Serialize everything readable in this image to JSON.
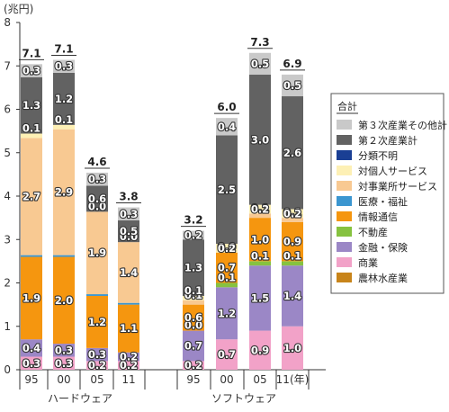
{
  "chart_data": {
    "type": "bar",
    "stacked": true,
    "y_unit_label": "(兆円)",
    "ylim": [
      0,
      8
    ],
    "yticks": [
      "0",
      "1",
      "2",
      "3",
      "4",
      "5",
      "6",
      "7",
      "8"
    ],
    "groups": [
      {
        "label": "ハードウェア",
        "categories": [
          "95",
          "00",
          "05",
          "11"
        ]
      },
      {
        "label": "ソフトウェア",
        "categories": [
          "95",
          "00",
          "05",
          "11(年)"
        ]
      }
    ],
    "totals": [
      "7.1",
      "7.1",
      "4.6",
      "3.8",
      "3.2",
      "6.0",
      "7.3",
      "6.9"
    ],
    "legend_title": "合計",
    "series": [
      {
        "name": "農林水産業",
        "color": "#c8841a",
        "values": [
          0,
          0,
          0,
          0,
          0,
          0,
          0,
          0
        ],
        "labels": [
          "",
          "",
          "",
          "",
          "",
          "",
          "",
          ""
        ]
      },
      {
        "name": "商業",
        "color": "#f2a2c8",
        "values": [
          0.3,
          0.3,
          0.2,
          0.2,
          0.2,
          0.7,
          0.9,
          1.0
        ],
        "labels": [
          "0.3",
          "0.3",
          "0.2",
          "0.2",
          "0.2",
          "0.7",
          "0.9",
          "1.0"
        ]
      },
      {
        "name": "金融・保険",
        "color": "#9b87c6",
        "values": [
          0.4,
          0.3,
          0.3,
          0.2,
          0.7,
          1.2,
          1.5,
          1.4
        ],
        "labels": [
          "0.4",
          "0.3",
          "0.3",
          "0.2",
          "0.7",
          "1.2",
          "1.5",
          "1.4"
        ]
      },
      {
        "name": "不動産",
        "color": "#86c240",
        "values": [
          0,
          0,
          0,
          0,
          0,
          0.1,
          0.1,
          0.1
        ],
        "labels": [
          "",
          "",
          "",
          "",
          "0.0",
          "0.1",
          "0.1",
          "0.1"
        ]
      },
      {
        "name": "情報通信",
        "color": "#f5960f",
        "values": [
          1.9,
          2.0,
          1.2,
          1.1,
          0.6,
          0.7,
          1.0,
          0.9
        ],
        "labels": [
          "1.9",
          "2.0",
          "1.2",
          "1.1",
          "0.6",
          "0.7",
          "1.0",
          "0.9"
        ]
      },
      {
        "name": "医療・福祉",
        "color": "#3b96d0",
        "values": [
          0.04,
          0.04,
          0.04,
          0.04,
          0,
          0,
          0,
          0
        ],
        "labels": [
          "",
          "",
          "",
          "",
          "",
          "",
          "",
          ""
        ]
      },
      {
        "name": "対事業所サービス",
        "color": "#f8c992",
        "values": [
          2.7,
          2.9,
          1.9,
          1.4,
          0.1,
          0.0,
          0.1,
          0.1
        ],
        "labels": [
          "2.7",
          "2.9",
          "1.9",
          "1.4",
          "0.1",
          "0.0",
          "0.1",
          "0.1"
        ]
      },
      {
        "name": "対個人サービス",
        "color": "#fdf0b5",
        "values": [
          0.1,
          0.1,
          0.0,
          0.0,
          0.1,
          0.2,
          0.2,
          0.2
        ],
        "labels": [
          "0.1",
          "0.1",
          "0.0",
          "0.0",
          "0.1",
          "0.2",
          "0.2",
          "0.2"
        ]
      },
      {
        "name": "分類不明",
        "color": "#1a3f94",
        "values": [
          0,
          0,
          0,
          0,
          0,
          0,
          0,
          0
        ],
        "labels": [
          "",
          "",
          "",
          "",
          "",
          "",
          "",
          ""
        ]
      },
      {
        "name": "第２次産業計",
        "color": "#626262",
        "values": [
          1.3,
          1.2,
          0.6,
          0.5,
          1.3,
          2.5,
          3.0,
          2.6
        ],
        "labels": [
          "1.3",
          "1.2",
          "0.6",
          "0.5",
          "1.3",
          "2.5",
          "3.0",
          "2.6"
        ]
      },
      {
        "name": "第３次産業その他計",
        "color": "#c9c9c9",
        "values": [
          0.3,
          0.3,
          0.3,
          0.3,
          0.2,
          0.4,
          0.5,
          0.5
        ],
        "labels": [
          "0.3",
          "0.3",
          "0.3",
          "0.3",
          "0.2",
          "0.4",
          "0.5",
          "0.5"
        ]
      }
    ]
  }
}
